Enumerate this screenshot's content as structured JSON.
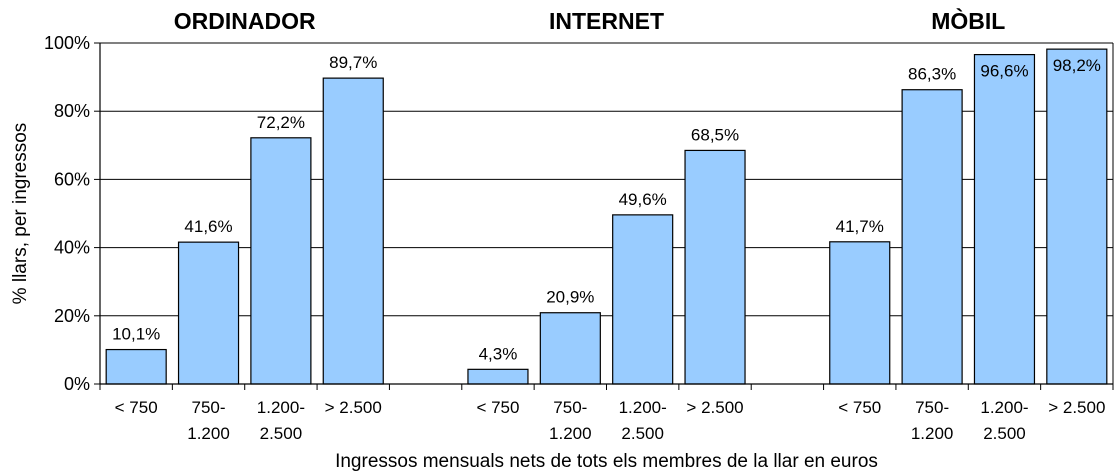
{
  "chart_data": {
    "type": "bar",
    "xlabel": "Ingressos mensuals nets de tots els membres de la llar en euros",
    "ylabel": "% llars, per ingressos",
    "ylim": [
      0,
      100
    ],
    "yticks": [
      "0%",
      "20%",
      "40%",
      "60%",
      "80%",
      "100%"
    ],
    "grid": true,
    "bar_color": "#99ccff",
    "groups": [
      {
        "title": "ORDINADOR",
        "categories": [
          [
            "< 750"
          ],
          [
            "750-",
            "1.200"
          ],
          [
            "1.200-",
            "2.500"
          ],
          [
            "> 2.500"
          ]
        ],
        "values": [
          10.1,
          41.6,
          72.2,
          89.7
        ],
        "labels": [
          "10,1%",
          "41,6%",
          "72,2%",
          "89,7%"
        ]
      },
      {
        "title": "INTERNET",
        "categories": [
          [
            "< 750"
          ],
          [
            "750-",
            "1.200"
          ],
          [
            "1.200-",
            "2.500"
          ],
          [
            "> 2.500"
          ]
        ],
        "values": [
          4.3,
          20.9,
          49.6,
          68.5
        ],
        "labels": [
          "4,3%",
          "20,9%",
          "49,6%",
          "68,5%"
        ]
      },
      {
        "title": "MÒBIL",
        "categories": [
          [
            "< 750"
          ],
          [
            "750-",
            "1.200"
          ],
          [
            "1.200-",
            "2.500"
          ],
          [
            "> 2.500"
          ]
        ],
        "values": [
          41.7,
          86.3,
          96.6,
          98.2
        ],
        "labels": [
          "41,7%",
          "86,3%",
          "96,6%",
          "98,2%"
        ]
      }
    ]
  }
}
